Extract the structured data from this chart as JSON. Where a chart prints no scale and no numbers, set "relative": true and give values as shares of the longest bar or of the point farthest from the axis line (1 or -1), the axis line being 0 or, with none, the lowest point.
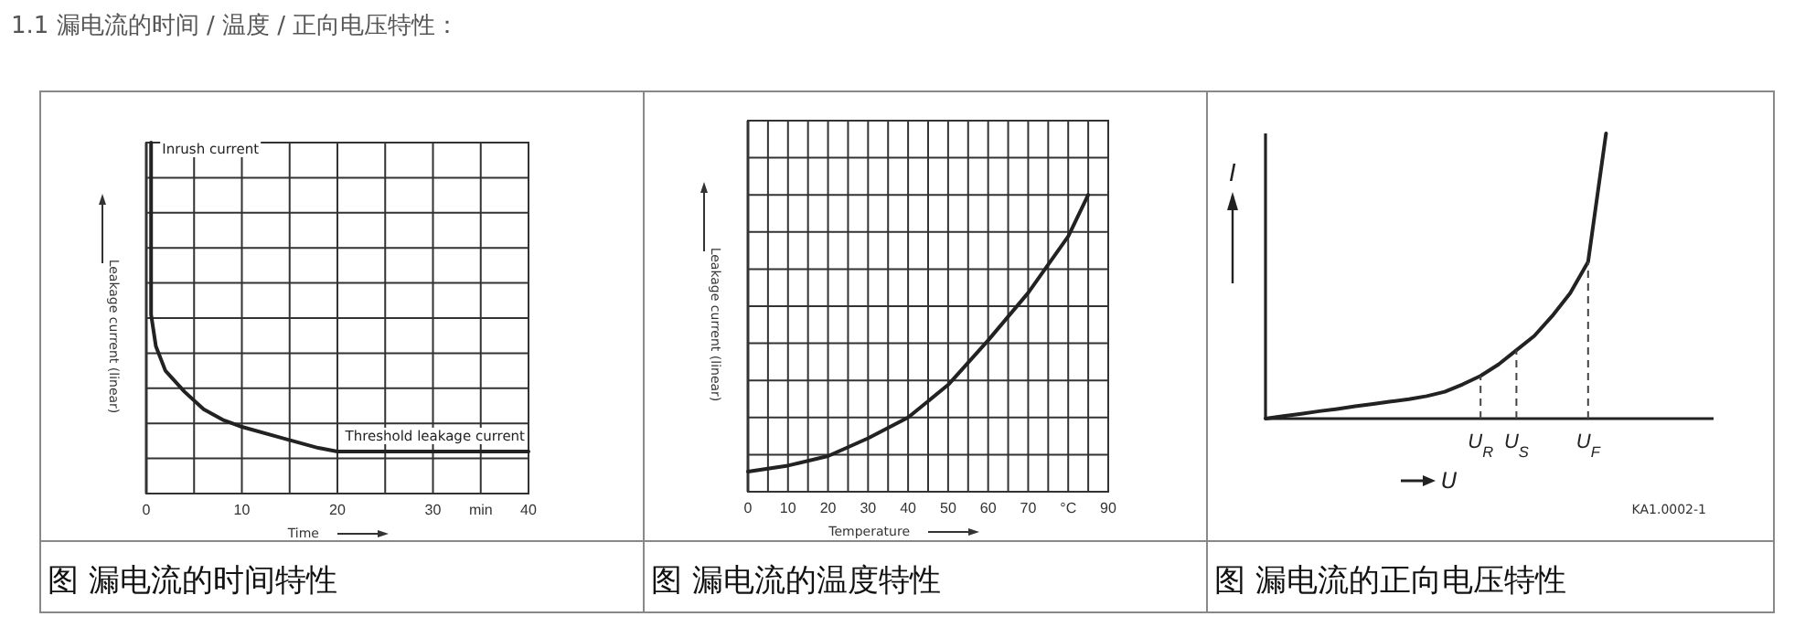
{
  "chart_data": [
    {
      "type": "line",
      "title": "1.1 漏电流的时间 / 温度 / 正向电压特性：",
      "xlabel": "Time",
      "ylabel": "Leakage current (linear)",
      "relative": true,
      "tick_labels": "x",
      "grid": true,
      "x": [
        0.5,
        0.5,
        1,
        2,
        4,
        6,
        8,
        10,
        14,
        18,
        20,
        25,
        40
      ],
      "xlim": [
        0,
        40
      ],
      "xticks": [
        0,
        {
          "value": 5,
          "label": null
        },
        10,
        {
          "value": 15,
          "label": null
        },
        20,
        {
          "value": 25,
          "label": null
        },
        30,
        {
          "value": 35,
          "label": "min"
        },
        40
      ],
      "series": [
        {
          "color": "#222222",
          "values": [
            1,
            0.51,
            0.42,
            0.35,
            0.29,
            0.24,
            0.21,
            0.19,
            0.16,
            0.13,
            0.12,
            0.12,
            0.12
          ]
        }
      ],
      "annotations": [
        "图  漏电流的时间特性",
        {
          "text": "Inrush current",
          "x": 0.5,
          "y": 1
        },
        {
          "text": "Threshold leakage current",
          "x": 25,
          "y": 0.12
        }
      ]
    },
    {
      "type": "line",
      "xlabel": "Temperature",
      "ylabel": "Leakage current (linear)",
      "relative": true,
      "tick_labels": "x",
      "grid": true,
      "x": [
        0,
        10,
        20,
        30,
        40,
        50,
        60,
        70,
        80,
        85
      ],
      "xlim": [
        0,
        90
      ],
      "xticks": [
        0,
        {
          "value": 5,
          "label": null
        },
        10,
        {
          "value": 15,
          "label": null
        },
        20,
        {
          "value": 25,
          "label": null
        },
        30,
        {
          "value": 35,
          "label": null
        },
        40,
        {
          "value": 45,
          "label": null
        },
        50,
        {
          "value": 55,
          "label": null
        },
        60,
        {
          "value": 65,
          "label": null
        },
        70,
        {
          "value": 75,
          "label": null
        },
        {
          "value": 80,
          "label": "°C"
        },
        {
          "value": 85,
          "label": null
        },
        90
      ],
      "series": [
        {
          "color": "#222222",
          "values": [
            0.068,
            0.088,
            0.12,
            0.18,
            0.25,
            0.36,
            0.51,
            0.67,
            0.86,
            1
          ]
        }
      ],
      "annotations": [
        "图  漏电流的温度特性"
      ]
    },
    {
      "type": "line",
      "xlabel": "U",
      "ylabel": "I",
      "relative": true,
      "categories": [
        null,
        null,
        null,
        null,
        null,
        null,
        null,
        null,
        null,
        null,
        null,
        null,
        "U$_{R}$",
        null,
        "U$_{S}$",
        null,
        null,
        null,
        "U$_{F}$",
        null,
        null,
        null,
        null,
        null,
        null,
        null
      ],
      "series": [
        {
          "color": "#222222",
          "values": [
            0,
            0.009,
            0.017,
            0.026,
            0.034,
            0.043,
            0.051,
            0.06,
            0.068,
            0.079,
            0.094,
            0.12,
            0.15,
            0.19,
            0.24,
            0.29,
            0.36,
            0.44,
            0.55,
            1,
            null,
            null,
            null,
            null,
            null,
            null
          ]
        }
      ],
      "annotations": [
        "图  漏电流的正向电压特性",
        "KA1.0002-1"
      ]
    }
  ]
}
